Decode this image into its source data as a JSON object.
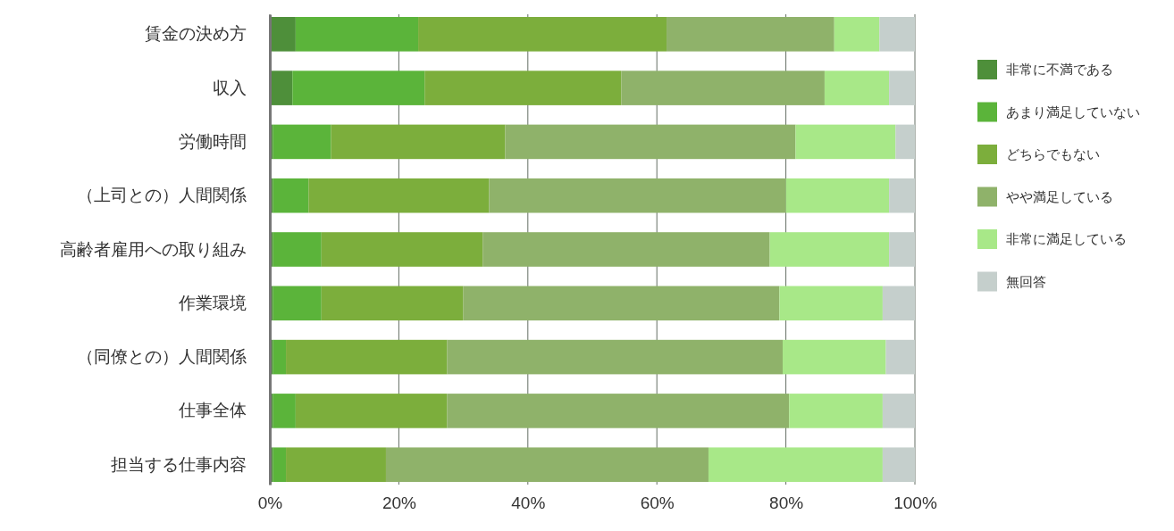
{
  "chart_data": {
    "type": "bar",
    "orientation": "horizontal",
    "stacked": true,
    "categories": [
      "賃金の決め方",
      "収入",
      "労働時間",
      "（上司との）人間関係",
      "高齢者雇用への取り組み",
      "作業環境",
      "（同僚との）人間関係",
      "仕事全体",
      "担当する仕事内容"
    ],
    "series": [
      {
        "name": "非常に不満である",
        "color": "#4e8f3a",
        "values": [
          4,
          3.5,
          0.5,
          0.5,
          0.5,
          0.5,
          0.5,
          0.5,
          0.5
        ]
      },
      {
        "name": "あまり満足していない",
        "color": "#5bb43a",
        "values": [
          19,
          20.5,
          9,
          5.5,
          7.5,
          7.5,
          2,
          3.5,
          2
        ]
      },
      {
        "name": "どちらでもない",
        "color": "#7cae3c",
        "values": [
          38.5,
          30.5,
          27,
          28,
          25,
          22,
          25,
          23.5,
          15.5
        ]
      },
      {
        "name": "やや満足している",
        "color": "#8fb26a",
        "values": [
          26,
          31.5,
          45,
          46,
          44.5,
          49,
          52,
          53,
          50
        ]
      },
      {
        "name": "非常に満足している",
        "color": "#a8e888",
        "values": [
          7,
          10,
          15.5,
          16,
          18.5,
          16,
          16,
          14.5,
          27
        ]
      },
      {
        "name": "無回答",
        "color": "#c5cfcc",
        "values": [
          5.5,
          4,
          3,
          4,
          4,
          5,
          4.5,
          5,
          5
        ]
      }
    ],
    "xlim": [
      0,
      100
    ],
    "xticks": [
      {
        "value": 0,
        "label": "0%"
      },
      {
        "value": 20,
        "label": "20%"
      },
      {
        "value": 40,
        "label": "40%"
      },
      {
        "value": 60,
        "label": "60%"
      },
      {
        "value": 80,
        "label": "80%"
      },
      {
        "value": 100,
        "label": "100%"
      }
    ],
    "grid": "x",
    "legend": "right"
  }
}
